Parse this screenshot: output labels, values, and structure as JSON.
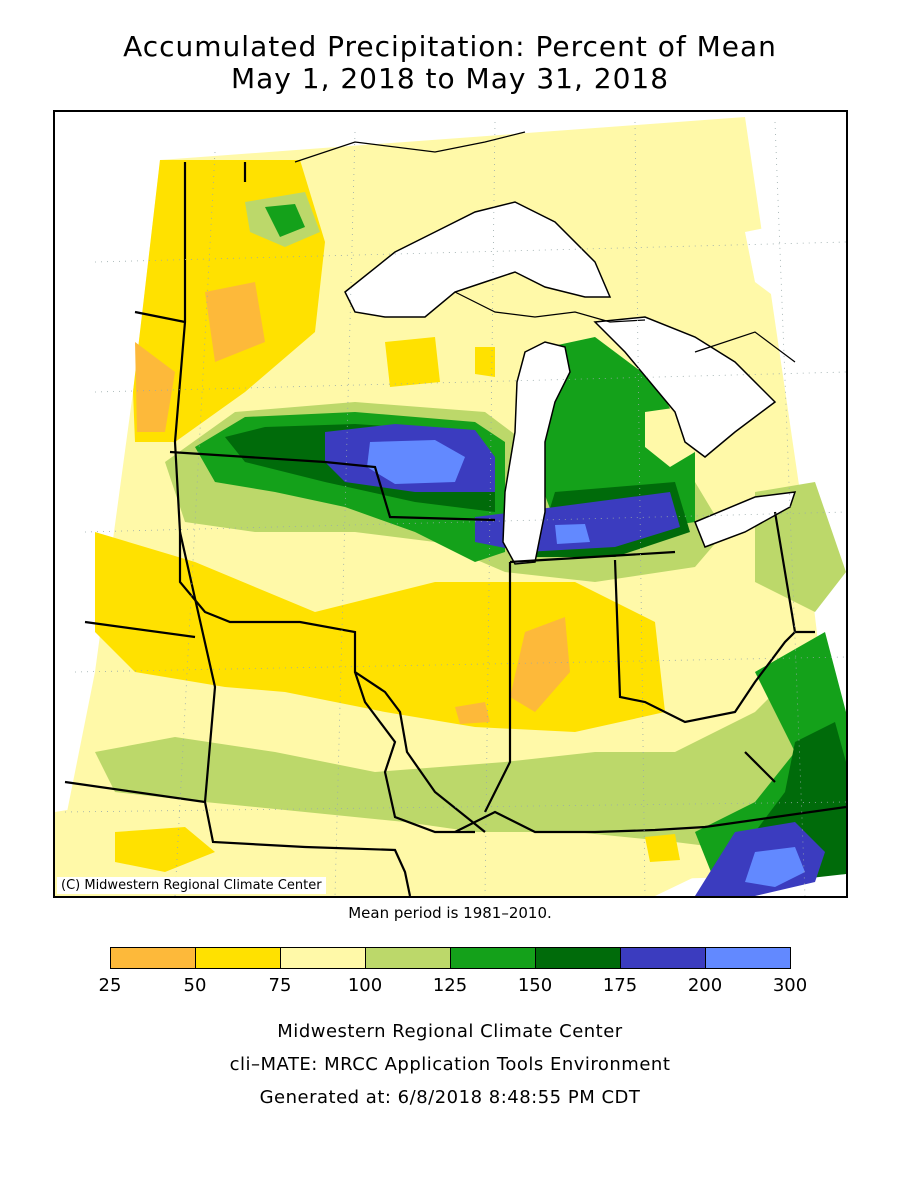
{
  "title": {
    "line1": "Accumulated Precipitation: Percent of Mean",
    "line2": "May 1, 2018 to May 31, 2018"
  },
  "map": {
    "copyright": "(C) Midwestern Regional Climate Center",
    "lake_color": "#ffffff",
    "boundary_color": "#000000"
  },
  "mean_period": "Mean period is 1981–2010.",
  "legend": {
    "bins": [
      {
        "from": 25,
        "to": 50,
        "color": "#fdb93a"
      },
      {
        "from": 50,
        "to": 75,
        "color": "#ffe100"
      },
      {
        "from": 75,
        "to": 100,
        "color": "#fff9a8"
      },
      {
        "from": 100,
        "to": 125,
        "color": "#bcd86a"
      },
      {
        "from": 125,
        "to": 150,
        "color": "#14a11a"
      },
      {
        "from": 150,
        "to": 175,
        "color": "#006b0a"
      },
      {
        "from": 175,
        "to": 200,
        "color": "#3b3cbf"
      },
      {
        "from": 200,
        "to": 300,
        "color": "#6289ff"
      }
    ],
    "tick_labels": [
      "25",
      "50",
      "75",
      "100",
      "125",
      "150",
      "175",
      "200",
      "300"
    ]
  },
  "credits": {
    "line1": "Midwestern Regional Climate Center",
    "line2": "cli–MATE: MRCC Application Tools Environment",
    "line3": "Generated at: 6/8/2018 8:48:55 PM CDT"
  }
}
